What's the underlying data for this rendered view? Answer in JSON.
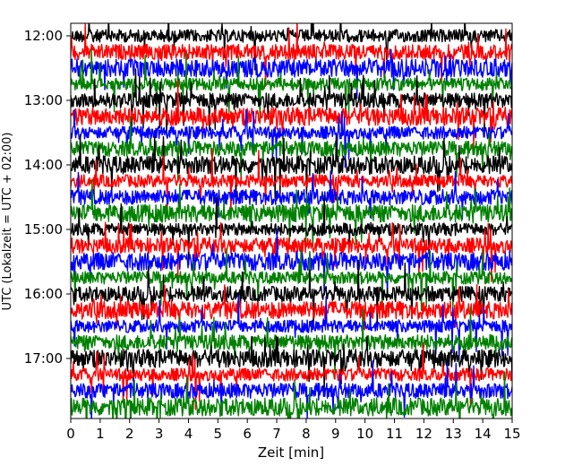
{
  "chart_data": {
    "type": "line",
    "title": "",
    "xlabel": "Zeit  [min]",
    "ylabel": "UTC (Lokalzeit = UTC + 02:00)",
    "xlim": [
      0,
      15
    ],
    "x_ticks": [
      0,
      1,
      2,
      3,
      4,
      5,
      6,
      7,
      8,
      9,
      10,
      11,
      12,
      13,
      14,
      15
    ],
    "x_tick_labels": [
      "0",
      "1",
      "2",
      "3",
      "4",
      "5",
      "6",
      "7",
      "8",
      "9",
      "10",
      "11",
      "12",
      "13",
      "14",
      "15"
    ],
    "y_tick_labels": [
      "12:00",
      "13:00",
      "14:00",
      "15:00",
      "16:00",
      "17:00"
    ],
    "y_ticks_utc_min": [
      720,
      780,
      840,
      900,
      960,
      1020
    ],
    "trace_interval_min": 15,
    "first_trace_utc": "12:00",
    "last_trace_utc": "17:45",
    "trace_color_cycle": [
      "#000000",
      "#ff0000",
      "#0000ff",
      "#008000"
    ],
    "grid": false,
    "legend": "none",
    "series": [
      {
        "start_utc": "12:00",
        "color": "#000000"
      },
      {
        "start_utc": "12:15",
        "color": "#ff0000"
      },
      {
        "start_utc": "12:30",
        "color": "#0000ff"
      },
      {
        "start_utc": "12:45",
        "color": "#008000"
      },
      {
        "start_utc": "13:00",
        "color": "#000000"
      },
      {
        "start_utc": "13:15",
        "color": "#ff0000"
      },
      {
        "start_utc": "13:30",
        "color": "#0000ff"
      },
      {
        "start_utc": "13:45",
        "color": "#008000"
      },
      {
        "start_utc": "14:00",
        "color": "#000000"
      },
      {
        "start_utc": "14:15",
        "color": "#ff0000"
      },
      {
        "start_utc": "14:30",
        "color": "#0000ff"
      },
      {
        "start_utc": "14:45",
        "color": "#008000"
      },
      {
        "start_utc": "15:00",
        "color": "#000000"
      },
      {
        "start_utc": "15:15",
        "color": "#ff0000"
      },
      {
        "start_utc": "15:30",
        "color": "#0000ff"
      },
      {
        "start_utc": "15:45",
        "color": "#008000"
      },
      {
        "start_utc": "16:00",
        "color": "#000000"
      },
      {
        "start_utc": "16:15",
        "color": "#ff0000"
      },
      {
        "start_utc": "16:30",
        "color": "#0000ff"
      },
      {
        "start_utc": "16:45",
        "color": "#008000"
      },
      {
        "start_utc": "17:00",
        "color": "#000000"
      },
      {
        "start_utc": "17:15",
        "color": "#ff0000"
      },
      {
        "start_utc": "17:30",
        "color": "#0000ff"
      },
      {
        "start_utc": "17:45",
        "color": "#008000"
      }
    ]
  }
}
